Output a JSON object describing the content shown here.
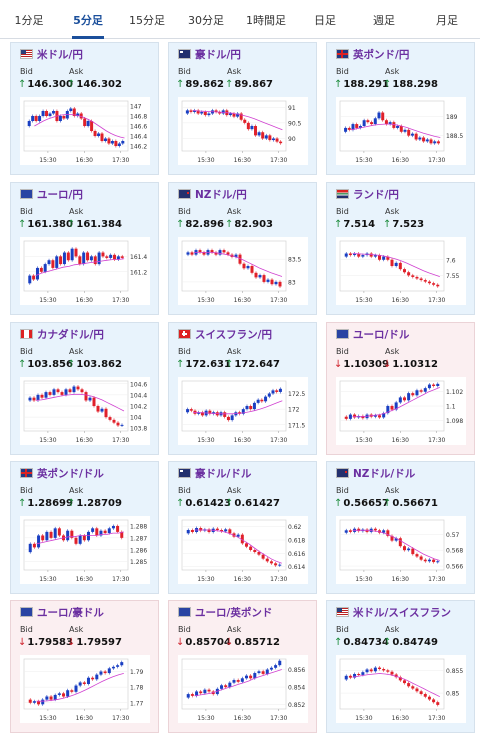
{
  "tabs": [
    {
      "label": "1分足",
      "active": false
    },
    {
      "label": "5分足",
      "active": true
    },
    {
      "label": "15分足",
      "active": false
    },
    {
      "label": "30分足",
      "active": false
    },
    {
      "label": "1時間足",
      "active": false
    },
    {
      "label": "日足",
      "active": false
    },
    {
      "label": "週足",
      "active": false
    },
    {
      "label": "月足",
      "active": false
    }
  ],
  "labels": {
    "bid": "Bid",
    "ask": "Ask"
  },
  "colors": {
    "up_arrow": "#1b8a3a",
    "down_arrow": "#d0242e",
    "title": "#6b2fa0",
    "candle_up": "#1a3fc2",
    "candle_down": "#e0202a",
    "ma_line": "#d040d0"
  },
  "cards": [
    {
      "name": "米ドル/円",
      "flag": "us",
      "trend": "up",
      "bid": "146.300",
      "ask": "146.302",
      "yticks": [
        "147",
        "146.8",
        "146.6",
        "146.4",
        "146.2"
      ],
      "xticks": [
        "15:30",
        "16:30",
        "17:30"
      ],
      "yrange": [
        146.1,
        147.1
      ],
      "prices": [
        146.6,
        146.7,
        146.8,
        146.7,
        146.8,
        146.9,
        146.8,
        146.85,
        146.9,
        146.7,
        146.8,
        146.75,
        146.9,
        146.95,
        146.8,
        146.85,
        146.75,
        146.6,
        146.7,
        146.5,
        146.4,
        146.45,
        146.3,
        146.35,
        146.25,
        146.3,
        146.2,
        146.25,
        146.3
      ],
      "ma": [
        146.6,
        146.65,
        146.7,
        146.74,
        146.77,
        146.8,
        146.82,
        146.83,
        146.83,
        146.82,
        146.8,
        146.77,
        146.73,
        146.68,
        146.62,
        146.56,
        146.5,
        146.45,
        146.41,
        146.38,
        146.36
      ]
    },
    {
      "name": "豪ドル/円",
      "flag": "au",
      "trend": "up",
      "bid": "89.862",
      "ask": "89.867",
      "yticks": [
        "91",
        "90.5",
        "90"
      ],
      "xticks": [
        "15:30",
        "16:30",
        "17:30"
      ],
      "yrange": [
        89.6,
        91.2
      ],
      "prices": [
        90.8,
        90.9,
        90.85,
        90.9,
        90.8,
        90.85,
        90.75,
        90.8,
        90.9,
        90.85,
        90.8,
        90.9,
        90.75,
        90.8,
        90.7,
        90.8,
        90.6,
        90.5,
        90.3,
        90.4,
        90.1,
        90.2,
        90.0,
        90.1,
        89.95,
        90.0,
        89.9,
        89.85
      ],
      "ma": [
        90.9,
        90.88,
        90.87,
        90.86,
        90.85,
        90.84,
        90.83,
        90.81,
        90.78,
        90.74,
        90.69,
        90.63,
        90.56,
        90.49,
        90.42,
        90.35,
        90.28
      ]
    },
    {
      "name": "英ポンド/円",
      "flag": "gb",
      "trend": "up",
      "bid": "188.291",
      "ask": "188.298",
      "yticks": [
        "189",
        "188.5"
      ],
      "xticks": [
        "15:30",
        "16:30",
        "17:30"
      ],
      "yrange": [
        188.1,
        189.4
      ],
      "prices": [
        188.6,
        188.7,
        188.65,
        188.8,
        188.7,
        188.75,
        188.9,
        188.85,
        188.8,
        188.95,
        189.1,
        188.9,
        188.8,
        188.85,
        188.7,
        188.75,
        188.6,
        188.65,
        188.5,
        188.55,
        188.4,
        188.45,
        188.35,
        188.4,
        188.3,
        188.35,
        188.3
      ],
      "ma": [
        188.65,
        188.68,
        188.71,
        188.74,
        188.77,
        188.79,
        188.8,
        188.8,
        188.78,
        188.75,
        188.71,
        188.66,
        188.61,
        188.56,
        188.52,
        188.48,
        188.45
      ]
    },
    {
      "name": "ユーロ/円",
      "flag": "eu",
      "trend": "up",
      "bid": "161.380",
      "ask": "161.384",
      "yticks": [
        "161.4",
        "161.2"
      ],
      "xticks": [
        "15:30",
        "16:30",
        "17:30"
      ],
      "yrange": [
        160.95,
        161.6
      ],
      "prices": [
        161.05,
        161.15,
        161.1,
        161.25,
        161.2,
        161.3,
        161.35,
        161.25,
        161.4,
        161.3,
        161.45,
        161.35,
        161.5,
        161.4,
        161.3,
        161.45,
        161.35,
        161.4,
        161.3,
        161.45,
        161.4,
        161.38,
        161.42,
        161.36,
        161.4,
        161.38
      ],
      "ma": [
        161.15,
        161.18,
        161.2,
        161.22,
        161.24,
        161.26,
        161.27,
        161.29,
        161.3,
        161.31,
        161.32,
        161.33,
        161.34,
        161.35,
        161.36,
        161.36,
        161.37
      ]
    },
    {
      "name": "NZドル/円",
      "flag": "nz",
      "trend": "up",
      "bid": "82.896",
      "ask": "82.903",
      "yticks": [
        "83.5",
        "83"
      ],
      "xticks": [
        "15:30",
        "16:30",
        "17:30"
      ],
      "yrange": [
        82.8,
        83.9
      ],
      "prices": [
        83.6,
        83.65,
        83.6,
        83.7,
        83.65,
        83.6,
        83.7,
        83.65,
        83.6,
        83.7,
        83.65,
        83.6,
        83.55,
        83.6,
        83.4,
        83.3,
        83.35,
        83.2,
        83.1,
        83.15,
        83.0,
        83.05,
        82.95,
        83.0,
        82.9
      ],
      "ma": [
        83.65,
        83.65,
        83.65,
        83.65,
        83.64,
        83.62,
        83.6,
        83.57,
        83.53,
        83.48,
        83.42,
        83.36,
        83.3,
        83.25,
        83.2,
        83.16,
        83.12
      ]
    },
    {
      "name": "ランド/円",
      "flag": "za",
      "trend": "up",
      "bid": "7.514",
      "ask": "7.523",
      "yticks": [
        "7.6",
        "7.55"
      ],
      "xticks": [
        "15:30",
        "16:30",
        "17:30"
      ],
      "yrange": [
        7.5,
        7.66
      ],
      "prices": [
        7.61,
        7.62,
        7.615,
        7.62,
        7.61,
        7.615,
        7.62,
        7.61,
        7.615,
        7.6,
        7.61,
        7.6,
        7.58,
        7.59,
        7.57,
        7.56,
        7.55,
        7.545,
        7.54,
        7.535,
        7.53,
        7.525,
        7.52,
        7.515
      ],
      "ma": [
        7.62,
        7.619,
        7.618,
        7.617,
        7.616,
        7.614,
        7.611,
        7.607,
        7.602,
        7.596,
        7.589,
        7.581,
        7.573,
        7.565,
        7.558,
        7.552,
        7.546
      ]
    },
    {
      "name": "カナダドル/円",
      "flag": "ca",
      "trend": "up",
      "bid": "103.856",
      "ask": "103.862",
      "yticks": [
        "104.6",
        "104.4",
        "104.2",
        "104",
        "103.8"
      ],
      "xticks": [
        "15:30",
        "16:30",
        "17:30"
      ],
      "yrange": [
        103.75,
        104.65
      ],
      "prices": [
        104.3,
        104.35,
        104.3,
        104.4,
        104.35,
        104.45,
        104.4,
        104.5,
        104.45,
        104.4,
        104.5,
        104.45,
        104.55,
        104.5,
        104.45,
        104.3,
        104.35,
        104.2,
        104.1,
        104.15,
        104.0,
        103.95,
        103.9,
        103.85,
        103.86
      ],
      "ma": [
        104.3,
        104.31,
        104.33,
        104.35,
        104.37,
        104.39,
        104.4,
        104.41,
        104.41,
        104.4,
        104.38,
        104.35,
        104.31,
        104.26,
        104.21,
        104.16,
        104.11
      ]
    },
    {
      "name": "スイスフラン/円",
      "flag": "ch",
      "trend": "up",
      "bid": "172.631",
      "ask": "172.647",
      "yticks": [
        "172.5",
        "172",
        "171.5"
      ],
      "xticks": [
        "15:30",
        "16:30",
        "17:30"
      ],
      "yrange": [
        171.3,
        172.9
      ],
      "prices": [
        171.9,
        172.0,
        171.95,
        171.85,
        171.9,
        171.8,
        171.95,
        171.85,
        171.9,
        171.8,
        171.9,
        171.75,
        171.65,
        171.8,
        171.9,
        171.85,
        172.0,
        172.1,
        172.0,
        172.2,
        172.3,
        172.25,
        172.4,
        172.5,
        172.6,
        172.55,
        172.65
      ],
      "ma": [
        171.9,
        171.89,
        171.88,
        171.87,
        171.86,
        171.85,
        171.85,
        171.85,
        171.86,
        171.88,
        171.91,
        171.95,
        172.0,
        172.06,
        172.13,
        172.2,
        172.27
      ]
    },
    {
      "name": "ユーロ/ドル",
      "flag": "eu",
      "trend": "down",
      "bid": "1.10309",
      "ask": "1.10312",
      "yticks": [
        "1.102",
        "1.1",
        "1.098"
      ],
      "xticks": [
        "15:30",
        "16:30",
        "17:30"
      ],
      "yrange": [
        1.0965,
        1.1035
      ],
      "prices": [
        1.0985,
        1.0982,
        1.0988,
        1.0984,
        1.0986,
        1.0983,
        1.0988,
        1.0985,
        1.0987,
        1.0984,
        1.099,
        1.1,
        1.0995,
        1.1005,
        1.1012,
        1.1008,
        1.1018,
        1.1015,
        1.1022,
        1.102,
        1.1025,
        1.103,
        1.1028,
        1.1031
      ],
      "ma": [
        1.0985,
        1.0985,
        1.0985,
        1.0986,
        1.0987,
        1.0988,
        1.099,
        1.0993,
        1.0996,
        1.1,
        1.1004,
        1.1008,
        1.1012,
        1.1016,
        1.102,
        1.1023,
        1.1026
      ]
    },
    {
      "name": "英ポンド/ドル",
      "flag": "gb",
      "trend": "up",
      "bid": "1.28699",
      "ask": "1.28709",
      "yticks": [
        "1.288",
        "1.287",
        "1.286",
        "1.285"
      ],
      "xticks": [
        "15:30",
        "16:30",
        "17:30"
      ],
      "yrange": [
        1.2843,
        1.2885
      ],
      "prices": [
        1.2858,
        1.2865,
        1.2862,
        1.2872,
        1.2868,
        1.2875,
        1.287,
        1.2878,
        1.2872,
        1.2868,
        1.2876,
        1.287,
        1.2865,
        1.2872,
        1.2868,
        1.2875,
        1.2878,
        1.2872,
        1.2876,
        1.2874,
        1.2878,
        1.288,
        1.2875,
        1.287
      ],
      "ma": [
        1.2865,
        1.2866,
        1.2867,
        1.2868,
        1.2869,
        1.287,
        1.2871,
        1.2871,
        1.2872,
        1.2872,
        1.2872,
        1.2872,
        1.2873,
        1.2873,
        1.2874,
        1.2874,
        1.2875
      ]
    },
    {
      "name": "豪ドル/ドル",
      "flag": "au",
      "trend": "up",
      "bid": "0.61423",
      "ask": "0.61427",
      "yticks": [
        "0.62",
        "0.618",
        "0.616",
        "0.614"
      ],
      "xticks": [
        "15:30",
        "16:30",
        "17:30"
      ],
      "yrange": [
        0.6135,
        0.621
      ],
      "prices": [
        0.619,
        0.6195,
        0.6192,
        0.6198,
        0.6194,
        0.6196,
        0.6192,
        0.6197,
        0.6195,
        0.6193,
        0.6196,
        0.619,
        0.6185,
        0.6188,
        0.6175,
        0.617,
        0.6165,
        0.6162,
        0.6158,
        0.6152,
        0.6148,
        0.6145,
        0.6142,
        0.6143
      ],
      "ma": [
        0.6195,
        0.6195,
        0.6195,
        0.6195,
        0.6194,
        0.6193,
        0.6191,
        0.6188,
        0.6184,
        0.6179,
        0.6174,
        0.6168,
        0.6162,
        0.6157,
        0.6152,
        0.6148,
        0.6145
      ]
    },
    {
      "name": "NZドル/ドル",
      "flag": "nz",
      "trend": "up",
      "bid": "0.56657",
      "ask": "0.56671",
      "yticks": [
        "0.57",
        "0.568",
        "0.566"
      ],
      "xticks": [
        "15:30",
        "16:30",
        "17:30"
      ],
      "yrange": [
        0.5655,
        0.5718
      ],
      "prices": [
        0.5702,
        0.5705,
        0.5703,
        0.5707,
        0.5704,
        0.5706,
        0.5703,
        0.5707,
        0.5705,
        0.5702,
        0.5705,
        0.5698,
        0.5692,
        0.5695,
        0.5685,
        0.568,
        0.5682,
        0.5675,
        0.5672,
        0.5668,
        0.5666,
        0.5668,
        0.5665,
        0.5666
      ],
      "ma": [
        0.5705,
        0.5705,
        0.5705,
        0.5705,
        0.5704,
        0.5703,
        0.5701,
        0.5698,
        0.5695,
        0.5691,
        0.5687,
        0.5683,
        0.5679,
        0.5675,
        0.5672,
        0.5669,
        0.5667
      ]
    },
    {
      "name": "ユーロ/豪ドル",
      "flag": "eu",
      "trend": "down",
      "bid": "1.79583",
      "ask": "1.79597",
      "yticks": [
        "1.79",
        "1.78",
        "1.77"
      ],
      "xticks": [
        "15:30",
        "16:30",
        "17:30"
      ],
      "yrange": [
        1.766,
        1.798
      ],
      "prices": [
        1.772,
        1.77,
        1.771,
        1.769,
        1.772,
        1.774,
        1.772,
        1.775,
        1.776,
        1.774,
        1.778,
        1.777,
        1.781,
        1.783,
        1.782,
        1.786,
        1.785,
        1.788,
        1.79,
        1.789,
        1.792,
        1.793,
        1.794,
        1.796
      ],
      "ma": [
        1.771,
        1.771,
        1.7712,
        1.7716,
        1.7722,
        1.773,
        1.774,
        1.7752,
        1.7766,
        1.7782,
        1.78,
        1.7818,
        1.7836,
        1.7852,
        1.7866,
        1.7878,
        1.7888
      ]
    },
    {
      "name": "ユーロ/英ポンド",
      "flag": "eu",
      "trend": "down",
      "bid": "0.85704",
      "ask": "0.85712",
      "yticks": [
        "0.856",
        "0.854",
        "0.852"
      ],
      "xticks": [
        "15:30",
        "16:30",
        "17:30"
      ],
      "yrange": [
        0.8515,
        0.8572
      ],
      "prices": [
        0.8528,
        0.8532,
        0.853,
        0.8535,
        0.8533,
        0.8537,
        0.8535,
        0.8532,
        0.8538,
        0.8542,
        0.854,
        0.8545,
        0.8548,
        0.8546,
        0.855,
        0.8553,
        0.855,
        0.8556,
        0.8558,
        0.8555,
        0.856,
        0.8562,
        0.8565,
        0.857
      ],
      "ma": [
        0.853,
        0.8531,
        0.8532,
        0.8533,
        0.8535,
        0.8537,
        0.8539,
        0.8541,
        0.8543,
        0.8545,
        0.8547,
        0.855,
        0.8552,
        0.8554,
        0.8556,
        0.8558,
        0.856
      ]
    },
    {
      "name": "米ドル/スイスフラン",
      "flag": "us",
      "trend": "up",
      "bid": "0.84734",
      "ask": "0.84749",
      "yticks": [
        "0.855",
        "0.85"
      ],
      "xticks": [
        "15:30",
        "16:30",
        "17:30"
      ],
      "yrange": [
        0.8465,
        0.8575
      ],
      "prices": [
        0.853,
        0.8538,
        0.8534,
        0.8542,
        0.854,
        0.8546,
        0.8552,
        0.8548,
        0.8556,
        0.8553,
        0.855,
        0.8547,
        0.8541,
        0.8535,
        0.8528,
        0.8522,
        0.8515,
        0.851,
        0.8504,
        0.8498,
        0.8492,
        0.8486,
        0.848,
        0.8474
      ],
      "ma": [
        0.8535,
        0.8537,
        0.8539,
        0.8541,
        0.8542,
        0.8543,
        0.8542,
        0.854,
        0.8537,
        0.8533,
        0.8528,
        0.8522,
        0.8516,
        0.851,
        0.8504,
        0.8498,
        0.8492
      ]
    }
  ]
}
